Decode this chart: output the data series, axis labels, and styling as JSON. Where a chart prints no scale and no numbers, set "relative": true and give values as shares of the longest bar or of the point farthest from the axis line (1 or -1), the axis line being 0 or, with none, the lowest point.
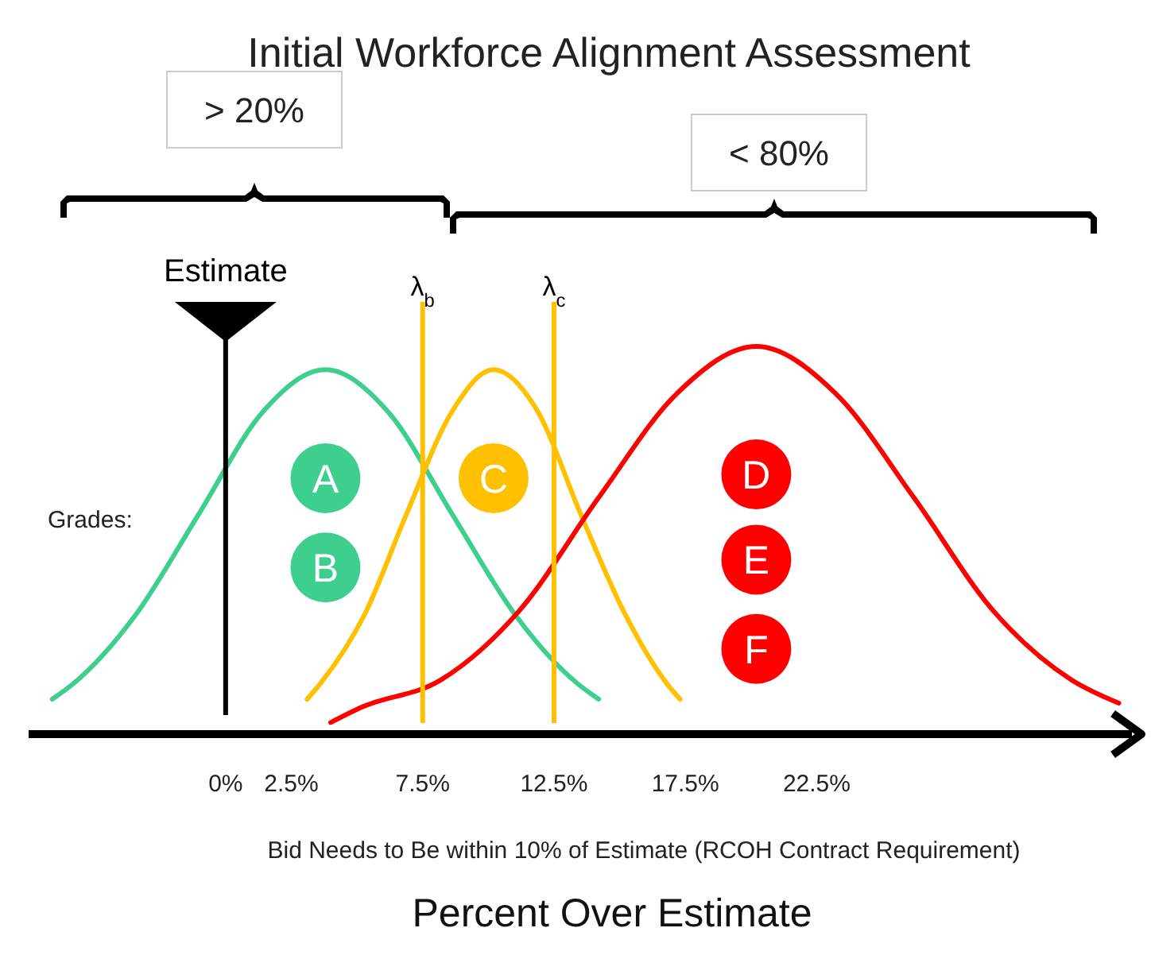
{
  "chart_data": {
    "type": "line",
    "title": "Initial Workforce Alignment Assessment",
    "xlabel": "Percent Over Estimate",
    "relative": true,
    "tick_labels": "x",
    "line_style": "solid",
    "xlim": [
      -7.5,
      34.5
    ],
    "xticks": [
      {
        "value": 0,
        "label": "0%"
      },
      {
        "value": 2.5,
        "label": "2.5%"
      },
      {
        "value": 7.5,
        "label": "7.5%"
      },
      {
        "value": 12.5,
        "label": "12.5%"
      },
      {
        "value": 17.5,
        "label": "17.5%"
      },
      {
        "value": 22.5,
        "label": "22.5%"
      }
    ],
    "series": [
      {
        "color": "#3ecf8e",
        "x": [
          -6.6,
          -5.8,
          -3.4,
          -1.0,
          1.4,
          3.8,
          6.2,
          8.6,
          11.0,
          13.4,
          14.2
        ],
        "values": [
          0.09,
          0.13,
          0.31,
          0.57,
          0.83,
          0.94,
          0.83,
          0.57,
          0.31,
          0.13,
          0.09
        ]
      },
      {
        "color": "#ffc000",
        "x": [
          3.1,
          3.6,
          5.3,
          6.9,
          8.6,
          10.2,
          11.9,
          13.5,
          15.2,
          16.8,
          17.3
        ],
        "values": [
          0.09,
          0.13,
          0.31,
          0.57,
          0.83,
          0.94,
          0.83,
          0.57,
          0.31,
          0.13,
          0.09
        ]
      },
      {
        "color": "#ff0000",
        "x": [
          4.0,
          5.2,
          8.2,
          11.2,
          14.2,
          17.2,
          20.2,
          23.2,
          26.2,
          29.2,
          32.2,
          34.0
        ],
        "values": [
          0.03,
          0.07,
          0.14,
          0.32,
          0.61,
          0.88,
          1,
          0.88,
          0.61,
          0.32,
          0.14,
          0.08
        ]
      }
    ],
    "ref_lines": [
      {
        "axis": "x",
        "value": 0,
        "label": "Estimate",
        "color": "#000000"
      },
      {
        "axis": "x",
        "value": 7.5,
        "label": "λ$_{b}$",
        "color": "#ffc000"
      },
      {
        "axis": "x",
        "value": 12.5,
        "label": "λ$_{c}$",
        "color": "#ffc000"
      }
    ],
    "annotations": [
      "> 20%",
      "< 80%",
      "Grades:",
      {
        "text": "A",
        "x": 3.8,
        "y": 0.66
      },
      {
        "text": "B",
        "x": 3.8,
        "y": 0.43
      },
      {
        "text": "C",
        "x": 10.2,
        "y": 0.66
      },
      {
        "text": "D",
        "x": 20.2,
        "y": 0.67
      },
      {
        "text": "E",
        "x": 20.2,
        "y": 0.45
      },
      {
        "text": "F",
        "x": 20.2,
        "y": 0.22
      },
      "Bid Needs to Be within 10% of Estimate (RCOH Contract Requirement)"
    ]
  }
}
